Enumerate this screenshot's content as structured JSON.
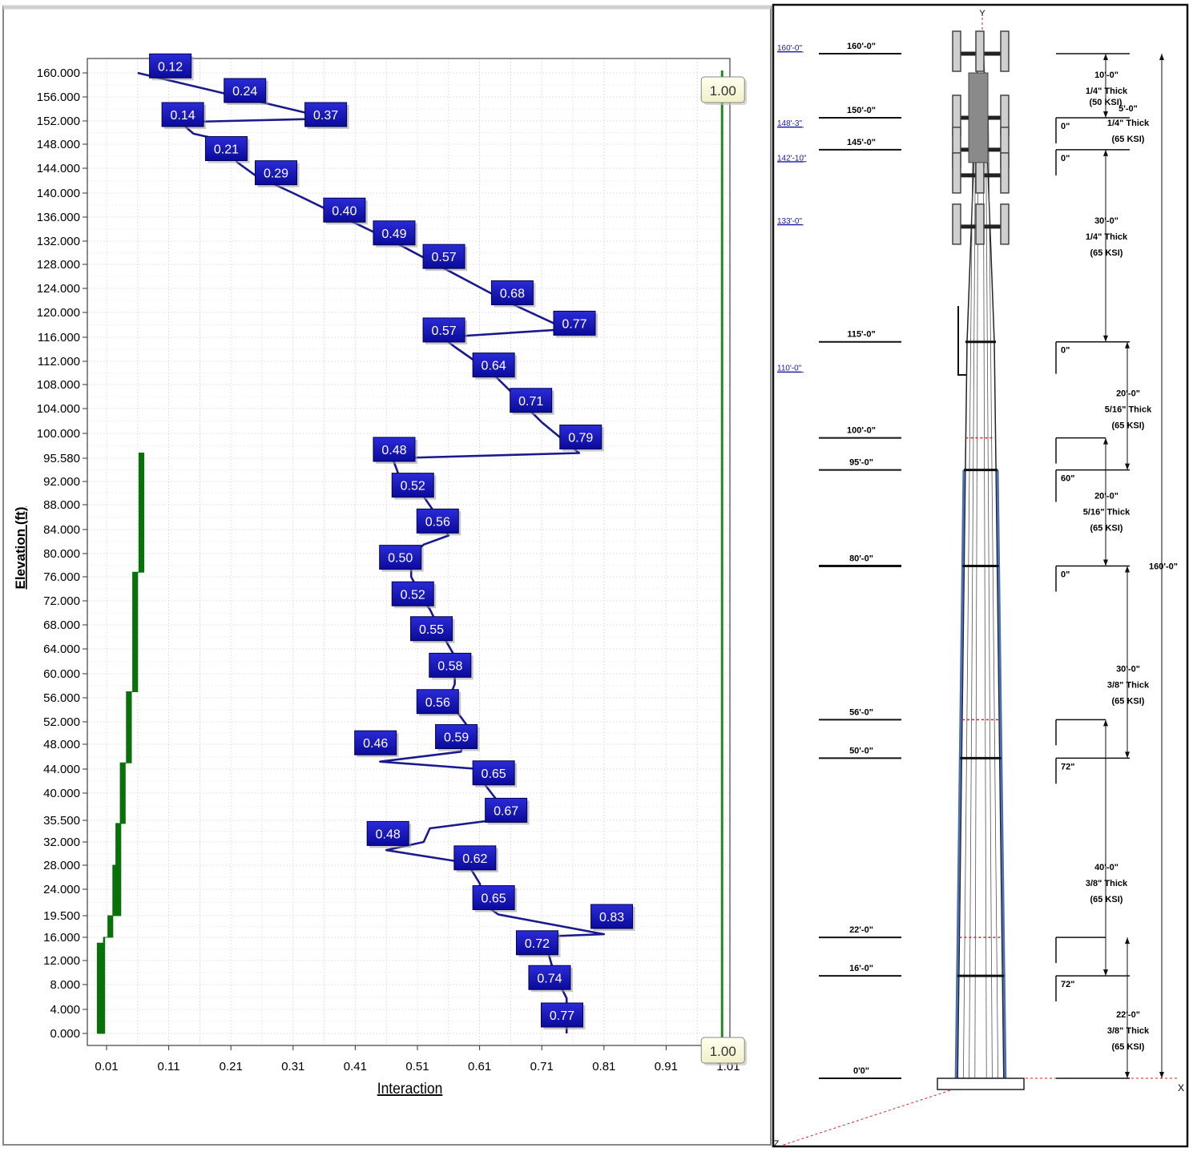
{
  "chart_data": {
    "type": "line",
    "xlabel": "Interaction",
    "ylabel": "Elevation (ft)",
    "xlim": [
      0,
      1.03
    ],
    "ylim": [
      -1.5,
      162.5
    ],
    "x_ticks": [
      "0.01",
      "0.11",
      "0.21",
      "0.31",
      "0.41",
      "0.51",
      "0.61",
      "0.71",
      "0.81",
      "0.91",
      "1.01"
    ],
    "x_tick_values": [
      0.01,
      0.11,
      0.21,
      0.31,
      0.41,
      0.51,
      0.61,
      0.71,
      0.81,
      0.91,
      1.01
    ],
    "y_ticks": [
      "0.000",
      "4.000",
      "8.000",
      "12.000",
      "16.000",
      "19.500",
      "24.000",
      "28.000",
      "32.000",
      "35.500",
      "40.000",
      "44.000",
      "48.000",
      "52.000",
      "56.000",
      "60.000",
      "64.000",
      "68.000",
      "72.000",
      "76.000",
      "80.000",
      "84.000",
      "88.000",
      "92.000",
      "95.580",
      "100.000",
      "104.000",
      "108.000",
      "112.000",
      "116.000",
      "120.000",
      "124.000",
      "128.000",
      "132.000",
      "136.000",
      "140.000",
      "144.000",
      "148.000",
      "152.000",
      "156.000",
      "160.000"
    ],
    "y_tick_values": [
      0,
      4,
      8,
      12,
      16,
      19.5,
      24,
      28,
      32,
      35.5,
      40,
      44,
      48,
      52,
      56,
      60,
      64,
      68,
      72,
      76,
      80,
      84,
      88,
      92,
      95.58,
      100,
      104,
      108,
      112,
      116,
      120,
      124,
      128,
      132,
      136,
      140,
      144,
      148,
      152,
      156,
      160
    ],
    "series": [
      {
        "color": "#1a1a8c",
        "points": [
          [
            0.06,
            160
          ],
          [
            0.37,
            152.4
          ],
          [
            0.13,
            151.8
          ],
          [
            0.14,
            150.7
          ],
          [
            0.15,
            149.8
          ],
          [
            0.2,
            148.6
          ],
          [
            0.22,
            145
          ],
          [
            0.25,
            142.8
          ],
          [
            0.31,
            140
          ],
          [
            0.4,
            135.5
          ],
          [
            0.47,
            132
          ],
          [
            0.55,
            127.5
          ],
          [
            0.65,
            122
          ],
          [
            0.75,
            117.3
          ],
          [
            0.55,
            116
          ],
          [
            0.57,
            114.4
          ],
          [
            0.63,
            110
          ],
          [
            0.68,
            104.8
          ],
          [
            0.71,
            101.8
          ],
          [
            0.77,
            96.5
          ],
          [
            0.47,
            95.58
          ],
          [
            0.48,
            93
          ],
          [
            0.5,
            92
          ],
          [
            0.52,
            89.4
          ],
          [
            0.54,
            86.4
          ],
          [
            0.56,
            83
          ],
          [
            0.52,
            81.5
          ],
          [
            0.5,
            79.5
          ],
          [
            0.5,
            76
          ],
          [
            0.52,
            72
          ],
          [
            0.53,
            70.6
          ],
          [
            0.55,
            66.4
          ],
          [
            0.57,
            62.8
          ],
          [
            0.57,
            58.3
          ],
          [
            0.56,
            55.6
          ],
          [
            0.59,
            51.3
          ],
          [
            0.58,
            46.8
          ],
          [
            0.45,
            45.2
          ],
          [
            0.61,
            44
          ],
          [
            0.62,
            41.2
          ],
          [
            0.66,
            35.9
          ],
          [
            0.53,
            34.2
          ],
          [
            0.52,
            32
          ],
          [
            0.46,
            30.6
          ],
          [
            0.59,
            28.4
          ],
          [
            0.61,
            25
          ],
          [
            0.62,
            21.2
          ],
          [
            0.64,
            19.7
          ],
          [
            0.81,
            16.5
          ],
          [
            0.73,
            16.2
          ],
          [
            0.72,
            13.5
          ],
          [
            0.73,
            9.8
          ],
          [
            0.75,
            5.8
          ],
          [
            0.75,
            0
          ]
        ]
      },
      {
        "color": "#097109",
        "points": [
          [
            -0.005,
            0
          ],
          [
            -0.005,
            15
          ],
          [
            0.005,
            15
          ],
          [
            0.005,
            16
          ],
          [
            0.012,
            16
          ],
          [
            0.012,
            19.5
          ],
          [
            0.02,
            19.5
          ],
          [
            0.02,
            28
          ],
          [
            0.025,
            28
          ],
          [
            0.025,
            35
          ],
          [
            0.032,
            35
          ],
          [
            0.032,
            45
          ],
          [
            0.042,
            45
          ],
          [
            0.042,
            57
          ],
          [
            0.052,
            57
          ],
          [
            0.052,
            76.8
          ],
          [
            0.062,
            76.8
          ],
          [
            0.062,
            95.58
          ],
          [
            0.062,
            96.5
          ]
        ]
      }
    ],
    "limit_line": {
      "x": 1.0,
      "color": "#1f8a1f"
    },
    "labels": [
      {
        "text": "0.12",
        "x": 0.11,
        "y": 161.3
      },
      {
        "text": "0.24",
        "x": 0.23,
        "y": 157.2
      },
      {
        "text": "0.14",
        "x": 0.13,
        "y": 153.2
      },
      {
        "text": "0.37",
        "x": 0.36,
        "y": 153.2
      },
      {
        "text": "0.21",
        "x": 0.2,
        "y": 147.4
      },
      {
        "text": "0.29",
        "x": 0.28,
        "y": 143.4
      },
      {
        "text": "0.40",
        "x": 0.39,
        "y": 137.3
      },
      {
        "text": "0.49",
        "x": 0.47,
        "y": 133.5
      },
      {
        "text": "0.57",
        "x": 0.55,
        "y": 129.5
      },
      {
        "text": "0.68",
        "x": 0.66,
        "y": 123.4
      },
      {
        "text": "0.77",
        "x": 0.76,
        "y": 118.4
      },
      {
        "text": "0.57",
        "x": 0.55,
        "y": 117.3
      },
      {
        "text": "0.64",
        "x": 0.63,
        "y": 111.5
      },
      {
        "text": "0.71",
        "x": 0.69,
        "y": 105.5
      },
      {
        "text": "0.79",
        "x": 0.77,
        "y": 99.5
      },
      {
        "text": "0.48",
        "x": 0.47,
        "y": 97.3
      },
      {
        "text": "0.52",
        "x": 0.5,
        "y": 91.5
      },
      {
        "text": "0.56",
        "x": 0.54,
        "y": 85.5
      },
      {
        "text": "0.50",
        "x": 0.48,
        "y": 79.5
      },
      {
        "text": "0.52",
        "x": 0.5,
        "y": 73.3
      },
      {
        "text": "0.55",
        "x": 0.53,
        "y": 67.5
      },
      {
        "text": "0.58",
        "x": 0.56,
        "y": 61.5
      },
      {
        "text": "0.56",
        "x": 0.54,
        "y": 55.5
      },
      {
        "text": "0.59",
        "x": 0.57,
        "y": 49.5
      },
      {
        "text": "0.46",
        "x": 0.44,
        "y": 48.4
      },
      {
        "text": "0.65",
        "x": 0.63,
        "y": 43.5
      },
      {
        "text": "0.67",
        "x": 0.65,
        "y": 37.3
      },
      {
        "text": "0.48",
        "x": 0.46,
        "y": 33.5
      },
      {
        "text": "0.62",
        "x": 0.6,
        "y": 29.4
      },
      {
        "text": "0.65",
        "x": 0.63,
        "y": 22.7
      },
      {
        "text": "0.83",
        "x": 0.82,
        "y": 19.5
      },
      {
        "text": "0.72",
        "x": 0.7,
        "y": 15.2
      },
      {
        "text": "0.74",
        "x": 0.72,
        "y": 9.3
      },
      {
        "text": "0.77",
        "x": 0.74,
        "y": 3.2
      }
    ],
    "limit_labels": [
      {
        "text": "1.00",
        "position": "top"
      },
      {
        "text": "1.00",
        "position": "bottom"
      }
    ],
    "grid": true
  },
  "tower": {
    "axis_y": "Y",
    "axis_x": "X",
    "axis_z": "Z",
    "blue_labels": [
      {
        "text": "160'-0\"",
        "elev": 160
      },
      {
        "text": "148'-3\"",
        "elev": 148.25
      },
      {
        "text": "142'-10\"",
        "elev": 142.83
      },
      {
        "text": "133'-0\"",
        "elev": 133
      },
      {
        "text": "110'-0\"",
        "elev": 110
      }
    ],
    "levels": [
      {
        "text": "160'-0\"",
        "elev": 160
      },
      {
        "text": "150'-0\"",
        "elev": 150
      },
      {
        "text": "145'-0\"",
        "elev": 145
      },
      {
        "text": "115'-0\"",
        "elev": 115
      },
      {
        "text": "100'-0\"",
        "elev": 100
      },
      {
        "text": "95'-0\"",
        "elev": 95
      },
      {
        "text": "80'-0\"",
        "elev": 80
      },
      {
        "text": "56'-0\"",
        "elev": 56
      },
      {
        "text": "50'-0\"",
        "elev": 50
      },
      {
        "text": "22'-0\"",
        "elev": 22
      },
      {
        "text": "16'-0\"",
        "elev": 16
      },
      {
        "text": "0'0\"",
        "elev": 0
      }
    ],
    "sections": [
      {
        "lines": [
          "10'-0\"",
          "1/4\" Thick"
        ],
        "mid": 155
      },
      {
        "lines": [
          "(50 KSI)"
        ],
        "mid": 152
      },
      {
        "lines": [
          "5'-0\""
        ],
        "mid": 151
      },
      {
        "lines": [
          "1/4\" Thick",
          "(65 KSI)"
        ],
        "mid": 147.5
      },
      {
        "lines": [
          "30'-0\"",
          "1/4\" Thick",
          "(65 KSI)"
        ],
        "mid": 131
      },
      {
        "lines": [
          "20'-0\"",
          "5/16\" Thick",
          "(65 KSI)"
        ],
        "mid": 104
      },
      {
        "lines": [
          "20'-0\"",
          "5/16\" Thick",
          "(65 KSI)"
        ],
        "mid": 88
      },
      {
        "lines": [
          "30'-0\"",
          "3/8\" Thick",
          "(65 KSI)"
        ],
        "mid": 61
      },
      {
        "lines": [
          "40'-0\"",
          "3/8\" Thick",
          "(65 KSI)"
        ],
        "mid": 30
      },
      {
        "lines": [
          "22'-0\"",
          "3/8\" Thick",
          "(65 KSI)"
        ],
        "mid": 7
      }
    ],
    "laps": [
      {
        "text": "0\"",
        "elev": 150
      },
      {
        "text": "0\"",
        "elev": 145
      },
      {
        "text": "0\"",
        "elev": 115
      },
      {
        "text": "60\"",
        "elev": 95
      },
      {
        "text": "0\"",
        "elev": 80
      },
      {
        "text": "72\"",
        "elev": 50
      },
      {
        "text": "72\"",
        "elev": 16
      }
    ],
    "overall": "160'-0\""
  }
}
